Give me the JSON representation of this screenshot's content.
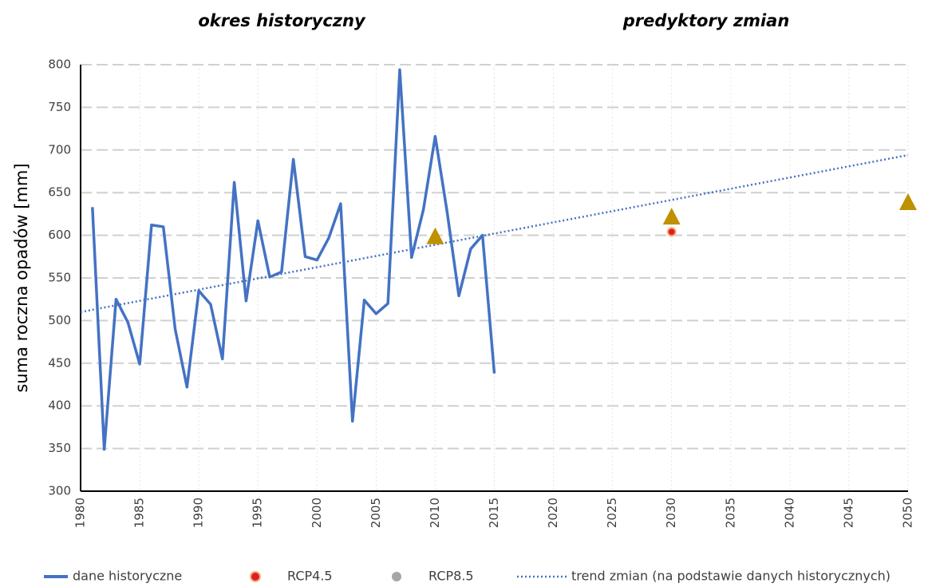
{
  "chart_data": {
    "type": "line",
    "annotations": [
      "okres historyczny",
      "predyktory zmian"
    ],
    "y_label": "suma roczna opadów [mm]",
    "xlim": [
      1980,
      2050
    ],
    "xticks": [
      1980,
      1985,
      1990,
      1995,
      2000,
      2005,
      2010,
      2015,
      2020,
      2025,
      2030,
      2035,
      2040,
      2045,
      2050
    ],
    "ylim": [
      300,
      800
    ],
    "yticks": [
      300,
      350,
      400,
      450,
      500,
      550,
      600,
      650,
      700,
      750,
      800
    ],
    "grid": true,
    "legend": "bottom",
    "series": [
      {
        "name": "dane historyczne",
        "style": "line",
        "color": "#4472c4",
        "x": [
          1981,
          1982,
          1983,
          1984,
          1985,
          1986,
          1987,
          1988,
          1989,
          1990,
          1991,
          1992,
          1993,
          1994,
          1995,
          1996,
          1997,
          1998,
          1999,
          2000,
          2001,
          2002,
          2003,
          2004,
          2005,
          2006,
          2007,
          2008,
          2009,
          2010,
          2011,
          2012,
          2013,
          2014,
          2015
        ],
        "values": [
          633,
          349,
          525,
          498,
          449,
          612,
          610,
          490,
          422,
          535,
          519,
          455,
          662,
          523,
          617,
          551,
          557,
          689,
          575,
          571,
          597,
          637,
          382,
          524,
          508,
          520,
          794,
          574,
          630,
          716,
          628,
          529,
          584,
          600,
          438
        ]
      },
      {
        "name": "RCP4.5",
        "style": "dot",
        "color": "#e02020",
        "x": [
          2030
        ],
        "values": [
          604
        ]
      },
      {
        "name": "RCP8.5",
        "style": "triangle",
        "color": "#a6a6a6",
        "marker_color": "#bf9000",
        "x": [
          2010,
          2030,
          2050
        ],
        "values": [
          598,
          621,
          638
        ]
      },
      {
        "name": "trend zmian (na podstawie danych historycznych)",
        "style": "dotted",
        "color": "#4472c4",
        "x": [
          1980,
          2050
        ],
        "values": [
          510,
          694
        ]
      }
    ]
  }
}
